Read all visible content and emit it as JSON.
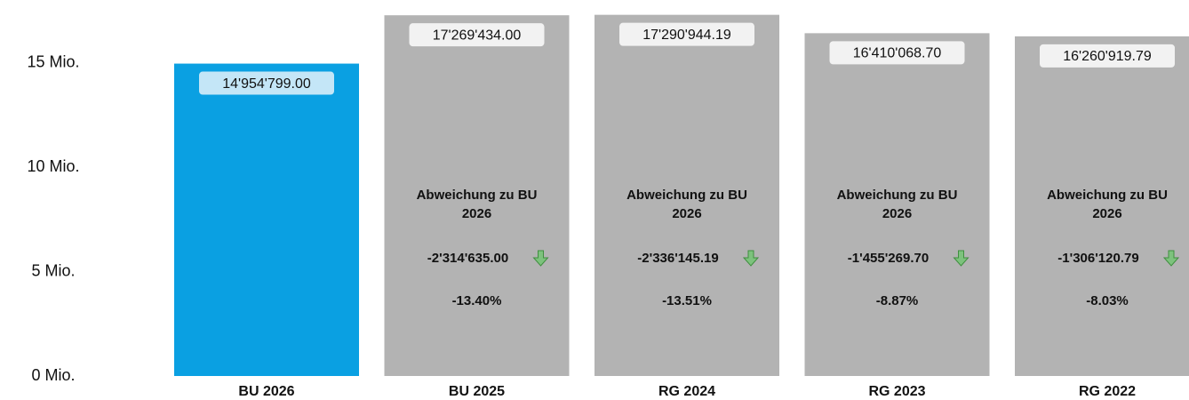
{
  "chart_data": {
    "type": "bar",
    "categories": [
      "BU 2026",
      "BU 2025",
      "RG 2024",
      "RG 2023",
      "RG 2022"
    ],
    "values": [
      14954799.0,
      17269434.0,
      17290944.19,
      16410068.7,
      16260919.79
    ],
    "value_labels": [
      "14'954'799.00",
      "17'269'434.00",
      "17'290'944.19",
      "16'410'068.70",
      "16'260'919.79"
    ],
    "colors": [
      "#0aa0e2",
      "#b3b3b3",
      "#b3b3b3",
      "#b3b3b3",
      "#b3b3b3"
    ],
    "ylim": [
      0,
      18000000
    ],
    "yticks": [
      {
        "value": 0,
        "label": "0 Mio."
      },
      {
        "value": 5000000,
        "label": "5 Mio."
      },
      {
        "value": 10000000,
        "label": "10 Mio."
      },
      {
        "value": 15000000,
        "label": "15 Mio."
      }
    ],
    "grid": false,
    "annotations": [
      null,
      {
        "title": "Abweichung zu BU 2026",
        "difference": "-2'314'635.00",
        "percent": "-13.40%"
      },
      {
        "title": "Abweichung zu BU 2026",
        "difference": "-2'336'145.19",
        "percent": "-13.51%"
      },
      {
        "title": "Abweichung zu BU 2026",
        "difference": "-1'455'269.70",
        "percent": "-8.87%"
      },
      {
        "title": "Abweichung zu BU 2026",
        "difference": "-1'306'120.79",
        "percent": "-8.03%"
      }
    ]
  }
}
